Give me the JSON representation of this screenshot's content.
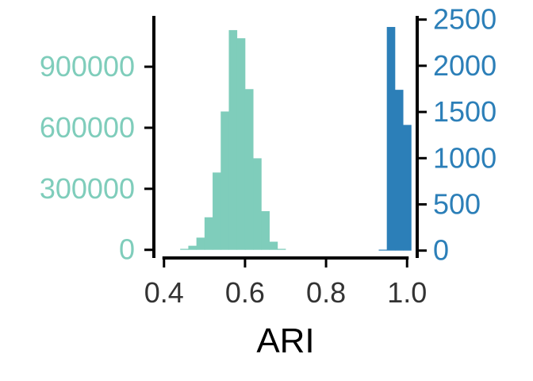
{
  "chart_data": {
    "type": "bar",
    "xlabel": "ARI",
    "x_ticks": [
      "0.4",
      "0.6",
      "0.8",
      "1.0"
    ],
    "xlim": [
      0.375,
      1.025
    ],
    "bin_width": 0.02,
    "series": [
      {
        "axis": "left",
        "color": "#7fcdbb",
        "bins": [
          {
            "x": 0.45,
            "y": 5000
          },
          {
            "x": 0.47,
            "y": 20000
          },
          {
            "x": 0.49,
            "y": 60000
          },
          {
            "x": 0.51,
            "y": 160000
          },
          {
            "x": 0.53,
            "y": 380000
          },
          {
            "x": 0.55,
            "y": 680000
          },
          {
            "x": 0.57,
            "y": 1080000
          },
          {
            "x": 0.59,
            "y": 1040000
          },
          {
            "x": 0.61,
            "y": 790000
          },
          {
            "x": 0.63,
            "y": 450000
          },
          {
            "x": 0.65,
            "y": 190000
          },
          {
            "x": 0.67,
            "y": 40000
          },
          {
            "x": 0.69,
            "y": 5000
          }
        ]
      },
      {
        "axis": "right",
        "color": "#2c7fb8",
        "bins": [
          {
            "x": 0.94,
            "y": 10
          },
          {
            "x": 0.96,
            "y": 2420
          },
          {
            "x": 0.98,
            "y": 1740
          },
          {
            "x": 1.0,
            "y": 1360
          }
        ]
      }
    ],
    "left_axis": {
      "color": "#7fcdbb",
      "ticks": [
        "0",
        "300000",
        "600000",
        "900000"
      ],
      "ylim": [
        -40000,
        1150000
      ]
    },
    "right_axis": {
      "color": "#2c7fb8",
      "ticks": [
        "0",
        "500",
        "1000",
        "1500",
        "2000",
        "2500"
      ],
      "ylim": [
        -80,
        2540
      ]
    },
    "grid": false,
    "legend": "none"
  }
}
